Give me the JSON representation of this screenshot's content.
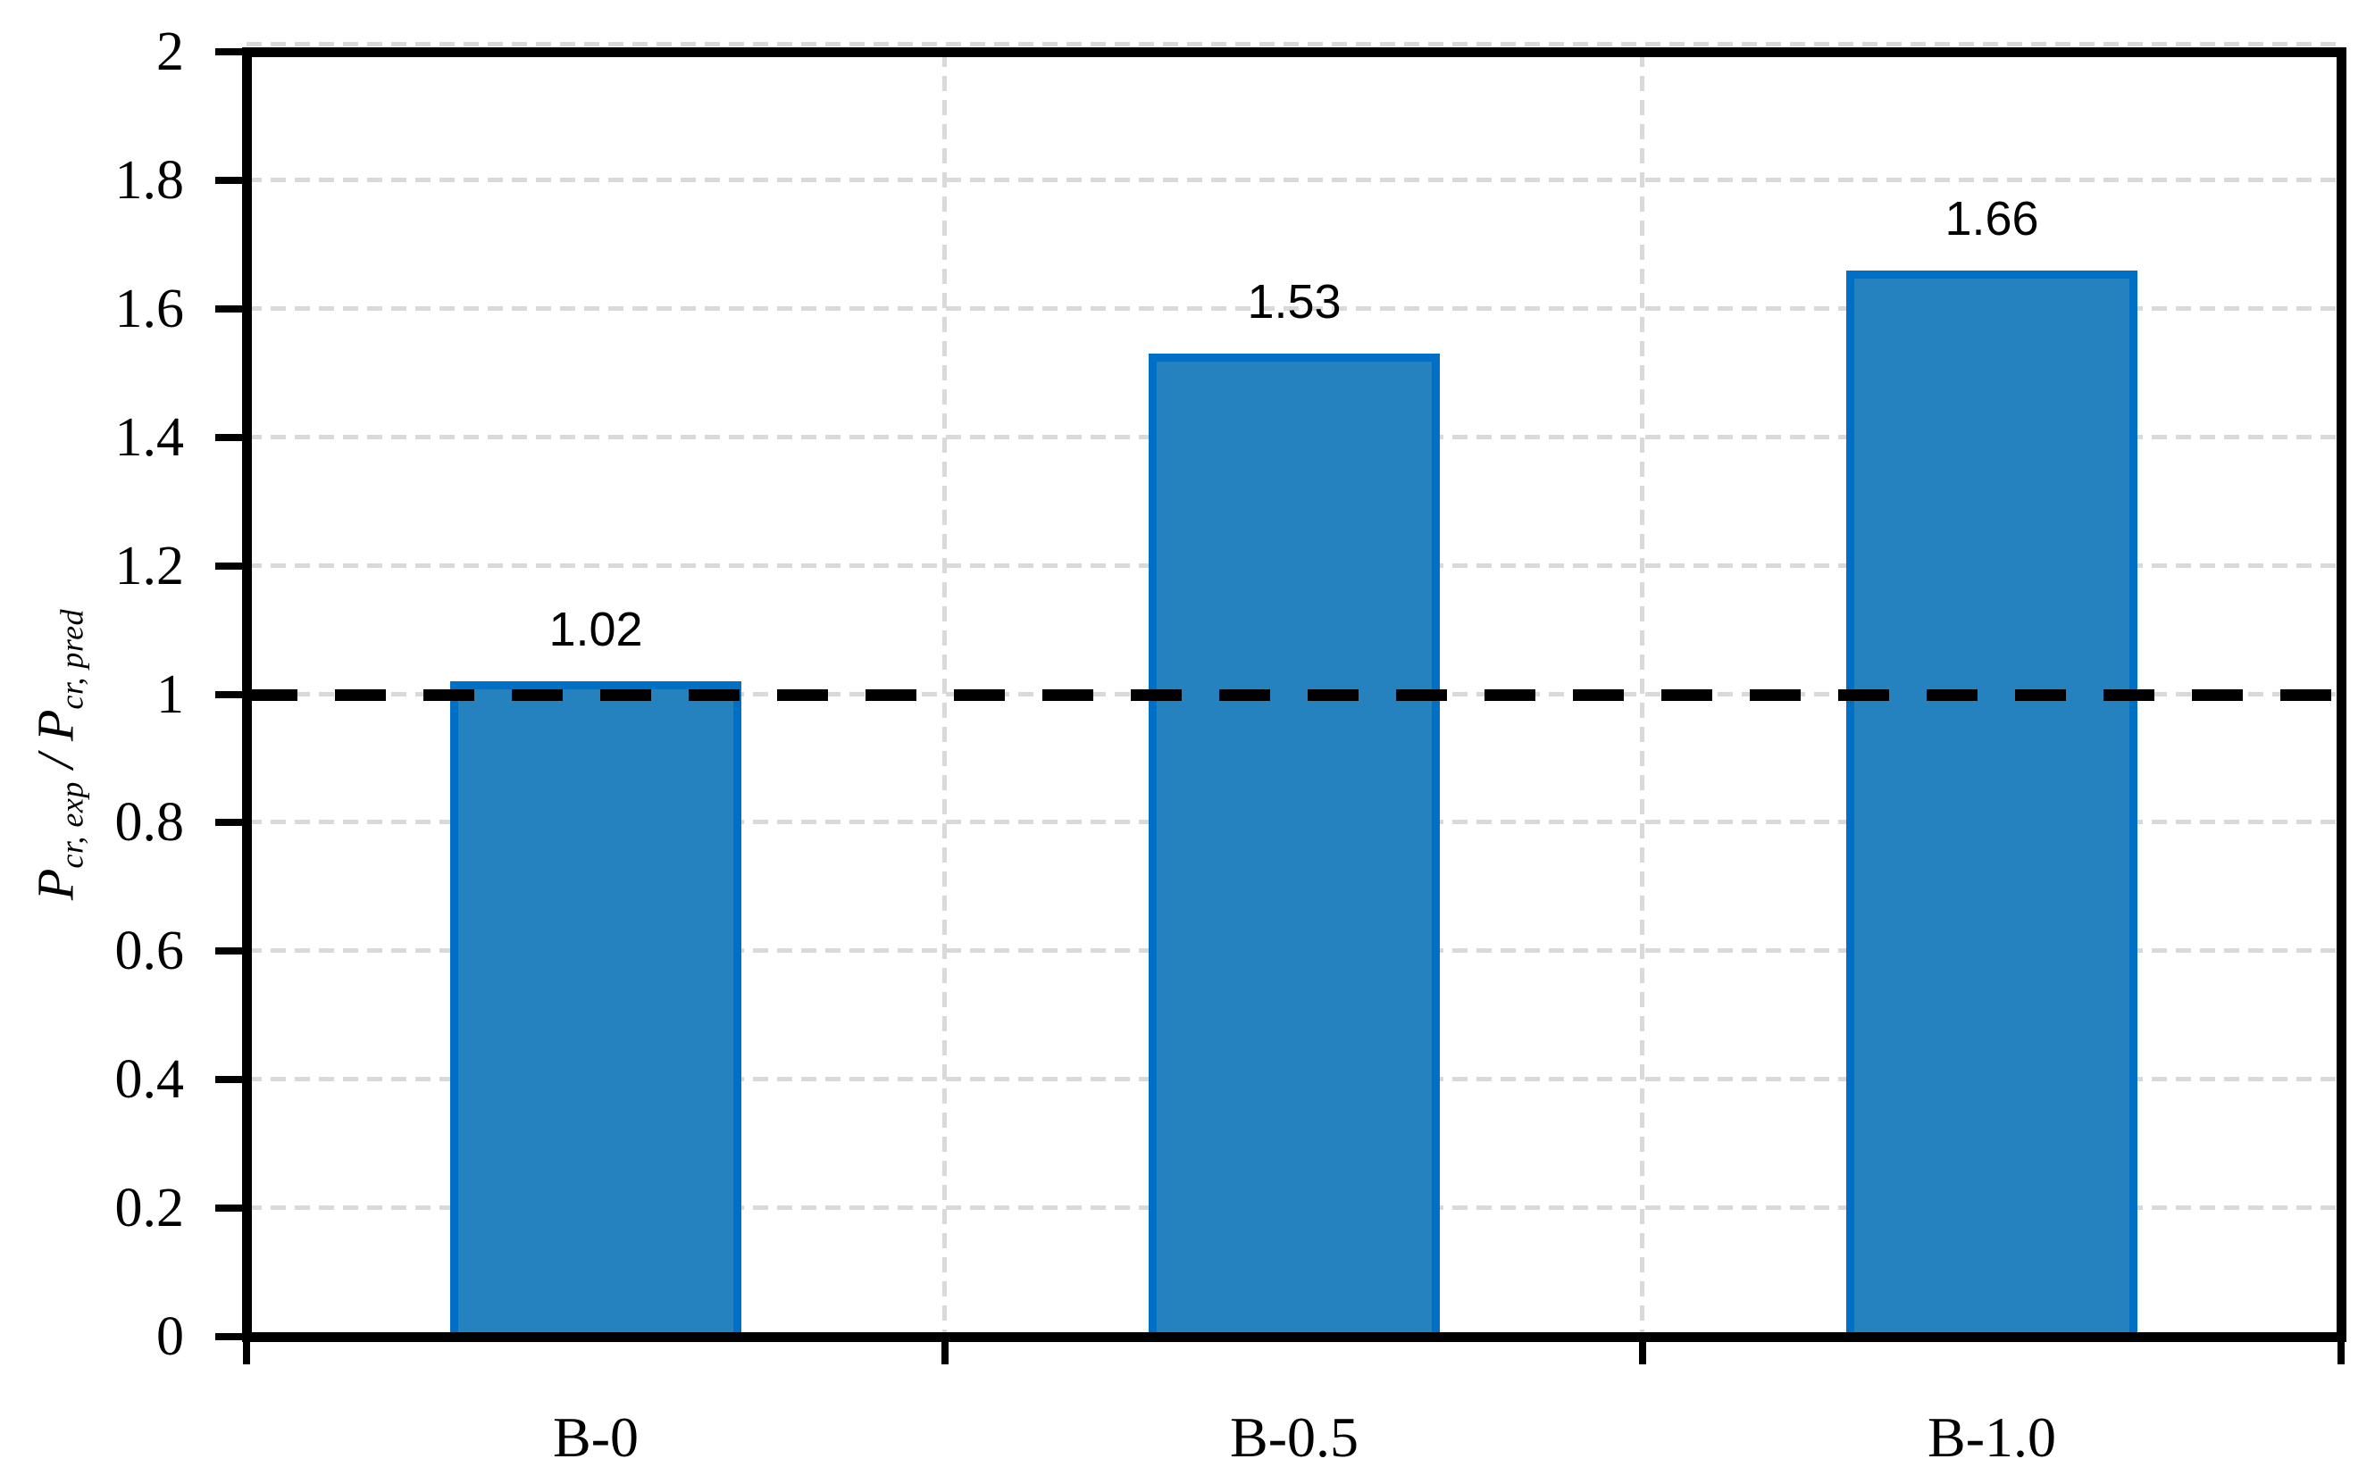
{
  "chart_data": {
    "type": "bar",
    "title": "",
    "categories": [
      "B-0",
      "B-0.5",
      "B-1.0"
    ],
    "values": [
      1.02,
      1.53,
      1.66
    ],
    "bar_labels": [
      "1.02",
      "1.53",
      "1.66"
    ],
    "xlabel": "",
    "ylabel": "Pcr, exp / Pcr, pred",
    "ylabel_parts": {
      "p1": "P",
      "sub1": "cr, exp",
      "mid": " / ",
      "p2": "P",
      "sub2": "cr, pred"
    },
    "ylim": [
      0,
      2
    ],
    "ytick_values": [
      2,
      1.8,
      1.6,
      1.4,
      1.2,
      1,
      0.8,
      0.6,
      0.4,
      0.2,
      0
    ],
    "ytick_labels": [
      "2",
      "1.8",
      "1.6",
      "1.4",
      "1.2",
      "1",
      "0.8",
      "0.6",
      "0.4",
      "0.2",
      "0"
    ],
    "reference_line": {
      "value": 1,
      "color": "#000000",
      "style": "dashed"
    },
    "grid": {
      "horizontal": true,
      "vertical_at_category_boundaries": true,
      "style": "dashed",
      "color": "#d9d9d9"
    },
    "legend": null,
    "colors": {
      "bar_fill": "#2681BF",
      "bar_border": "#0070C6",
      "axis": "#000000",
      "gridline": "#d9d9d9",
      "text": "#000000"
    }
  }
}
